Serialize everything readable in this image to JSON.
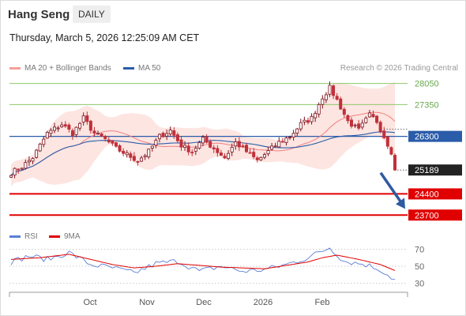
{
  "header": {
    "title": "Hang Seng",
    "period": "DAILY",
    "datetime": "Thursday, March 5, 2026 12:25:09 AM CET",
    "credit": "Research © 2026 Trading Central"
  },
  "legend": {
    "main": [
      {
        "label": "MA 20 + Bollinger Bands",
        "color": "#f4a09a"
      },
      {
        "label": "MA 50",
        "color": "#2a5caa"
      }
    ],
    "rsi": [
      {
        "label": "RSI",
        "color": "#5b7fd6"
      },
      {
        "label": "9MA",
        "color": "#e00000"
      }
    ]
  },
  "colors": {
    "up": "#7a1520",
    "down": "#c0303a",
    "resistance": "#8dc86a",
    "pivot": "#2a5caa",
    "support": "#e00000",
    "last": "#222222",
    "arrow": "#2e5aa0",
    "band": "#fde0dc"
  },
  "chart_data": [
    {
      "type": "candlestick",
      "title": "Hang Seng",
      "x_ticks": [
        "Oct",
        "Nov",
        "Dec",
        "2026",
        "Feb"
      ],
      "ylim": [
        23550,
        28300
      ],
      "levels": [
        {
          "label": "28050",
          "value": 28050,
          "kind": "resistance"
        },
        {
          "label": "27350",
          "value": 27350,
          "kind": "resistance"
        },
        {
          "label": "26300",
          "value": 26300,
          "kind": "pivot"
        },
        {
          "label": "25189",
          "value": 25189,
          "kind": "last"
        },
        {
          "label": "24400",
          "value": 24400,
          "kind": "support"
        },
        {
          "label": "23700",
          "value": 23700,
          "kind": "support"
        }
      ],
      "arrow": {
        "from": 25200,
        "to": 23800,
        "direction": "down"
      },
      "keypoints": [
        [
          0,
          25100
        ],
        [
          3,
          25300
        ],
        [
          6,
          25600
        ],
        [
          10,
          26400
        ],
        [
          14,
          26700
        ],
        [
          17,
          26400
        ],
        [
          20,
          26900
        ],
        [
          23,
          26400
        ],
        [
          26,
          26200
        ],
        [
          29,
          25900
        ],
        [
          32,
          25700
        ],
        [
          35,
          25500
        ],
        [
          38,
          25800
        ],
        [
          41,
          26300
        ],
        [
          44,
          26500
        ],
        [
          47,
          26000
        ],
        [
          50,
          25800
        ],
        [
          53,
          26200
        ],
        [
          56,
          25900
        ],
        [
          59,
          25600
        ],
        [
          62,
          26100
        ],
        [
          65,
          25800
        ],
        [
          68,
          25500
        ],
        [
          71,
          25800
        ],
        [
          74,
          26100
        ],
        [
          77,
          26300
        ],
        [
          80,
          26700
        ],
        [
          83,
          26900
        ],
        [
          86,
          27600
        ],
        [
          88,
          27900
        ],
        [
          90,
          27500
        ],
        [
          93,
          26800
        ],
        [
          96,
          26500
        ],
        [
          99,
          27000
        ],
        [
          101,
          26800
        ],
        [
          103,
          26300
        ],
        [
          105,
          25800
        ],
        [
          106,
          25200
        ]
      ]
    },
    {
      "type": "line",
      "title": "RSI",
      "ylim": [
        25,
        75
      ],
      "y_ticks": [
        70,
        50,
        30
      ],
      "series": [
        {
          "name": "RSI",
          "keypoints": [
            [
              0,
              55
            ],
            [
              5,
              62
            ],
            [
              10,
              58
            ],
            [
              16,
              66
            ],
            [
              22,
              52
            ],
            [
              28,
              48
            ],
            [
              34,
              42
            ],
            [
              40,
              53
            ],
            [
              46,
              56
            ],
            [
              52,
              44
            ],
            [
              58,
              50
            ],
            [
              64,
              44
            ],
            [
              70,
              46
            ],
            [
              76,
              52
            ],
            [
              82,
              60
            ],
            [
              86,
              68
            ],
            [
              88,
              72
            ],
            [
              92,
              56
            ],
            [
              98,
              52
            ],
            [
              102,
              46
            ],
            [
              106,
              34
            ]
          ]
        },
        {
          "name": "9MA",
          "keypoints": [
            [
              0,
              58
            ],
            [
              8,
              60
            ],
            [
              16,
              64
            ],
            [
              22,
              58
            ],
            [
              28,
              52
            ],
            [
              34,
              48
            ],
            [
              40,
              50
            ],
            [
              46,
              53
            ],
            [
              52,
              51
            ],
            [
              58,
              49
            ],
            [
              64,
              48
            ],
            [
              70,
              47
            ],
            [
              76,
              51
            ],
            [
              82,
              55
            ],
            [
              86,
              60
            ],
            [
              90,
              63
            ],
            [
              96,
              58
            ],
            [
              102,
              52
            ],
            [
              106,
              45
            ]
          ]
        }
      ]
    }
  ]
}
